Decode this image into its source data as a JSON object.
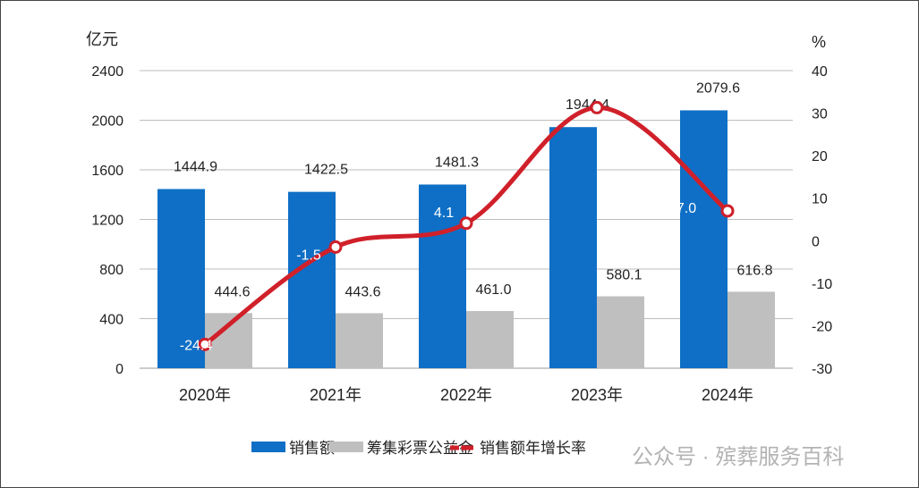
{
  "chart_data": {
    "type": "bar+line",
    "categories": [
      "2020年",
      "2021年",
      "2022年",
      "2023年",
      "2024年"
    ],
    "left_axis": {
      "label": "亿元",
      "ylim": [
        0,
        2400
      ],
      "ticks": [
        0,
        400,
        800,
        1200,
        1600,
        2000,
        2400
      ]
    },
    "right_axis": {
      "label": "%",
      "ylim": [
        -30,
        40
      ],
      "ticks": [
        -30,
        -20,
        -10,
        0,
        10,
        20,
        30,
        40
      ]
    },
    "grid": true,
    "legend_position": "bottom",
    "series": [
      {
        "name": "销售额",
        "type": "bar",
        "axis": "left",
        "color": "#0f6fc6",
        "values": [
          1444.9,
          1422.5,
          1481.3,
          1944.4,
          2079.6
        ],
        "labels": [
          "1444.9",
          "1422.5",
          "1481.3",
          "1944.4",
          "2079.6"
        ]
      },
      {
        "name": "筹集彩票公益金",
        "type": "bar",
        "axis": "left",
        "color": "#bfbfbf",
        "values": [
          444.6,
          443.6,
          461.0,
          580.1,
          616.8
        ],
        "labels": [
          "444.6",
          "443.6",
          "461.0",
          "580.1",
          "616.8"
        ]
      },
      {
        "name": "销售额年增长率",
        "type": "line",
        "axis": "right",
        "color": "#d0202a",
        "values": [
          -24.4,
          -1.5,
          4.1,
          31.3,
          7.0
        ],
        "labels": [
          "-24.4",
          "-1.5",
          "4.1",
          "31.3",
          "7.0"
        ]
      }
    ]
  },
  "watermark": "公众号 · 殡葬服务百科"
}
